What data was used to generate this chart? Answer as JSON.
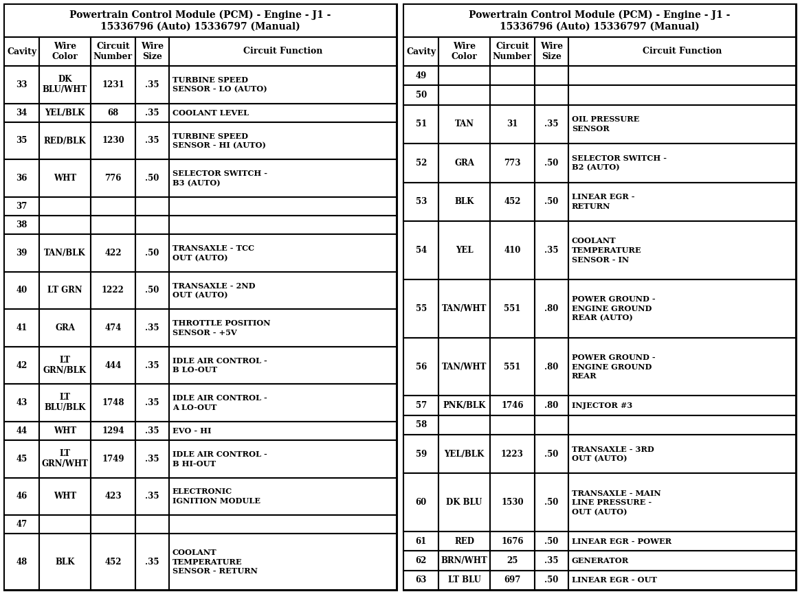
{
  "title": "Powertrain Control Module (PCM) - Engine - J1 -\n15336796 (Auto) 15336797 (Manual)",
  "col_headers": [
    "Cavity",
    "Wire\nColor",
    "Circuit\nNumber",
    "Wire\nSize",
    "Circuit Function"
  ],
  "left_table": [
    [
      "33",
      "DK\nBLU/WHT",
      "1231",
      ".35",
      "TURBINE SPEED\nSENSOR - LO (AUTO)"
    ],
    [
      "34",
      "YEL/BLK",
      "68",
      ".35",
      "COOLANT LEVEL"
    ],
    [
      "35",
      "RED/BLK",
      "1230",
      ".35",
      "TURBINE SPEED\nSENSOR - HI (AUTO)"
    ],
    [
      "36",
      "WHT",
      "776",
      ".50",
      "SELECTOR SWITCH -\nB3 (AUTO)"
    ],
    [
      "37",
      "",
      "",
      "",
      ""
    ],
    [
      "38",
      "",
      "",
      "",
      ""
    ],
    [
      "39",
      "TAN/BLK",
      "422",
      ".50",
      "TRANSAXLE - TCC\nOUT (AUTO)"
    ],
    [
      "40",
      "LT GRN",
      "1222",
      ".50",
      "TRANSAXLE - 2ND\nOUT (AUTO)"
    ],
    [
      "41",
      "GRA",
      "474",
      ".35",
      "THROTTLE POSITION\nSENSOR - +5V"
    ],
    [
      "42",
      "LT\nGRN/BLK",
      "444",
      ".35",
      "IDLE AIR CONTROL -\nB LO-OUT"
    ],
    [
      "43",
      "LT\nBLU/BLK",
      "1748",
      ".35",
      "IDLE AIR CONTROL -\nA LO-OUT"
    ],
    [
      "44",
      "WHT",
      "1294",
      ".35",
      "EVO - HI"
    ],
    [
      "45",
      "LT\nGRN/WHT",
      "1749",
      ".35",
      "IDLE AIR CONTROL -\nB HI-OUT"
    ],
    [
      "46",
      "WHT",
      "423",
      ".35",
      "ELECTRONIC\nIGNITION MODULE"
    ],
    [
      "47",
      "",
      "",
      "",
      ""
    ],
    [
      "48",
      "BLK",
      "452",
      ".35",
      "COOLANT\nTEMPERATURE\nSENSOR - RETURN"
    ]
  ],
  "right_table": [
    [
      "49",
      "",
      "",
      "",
      ""
    ],
    [
      "50",
      "",
      "",
      "",
      ""
    ],
    [
      "51",
      "TAN",
      "31",
      ".35",
      "OIL PRESSURE\nSENSOR"
    ],
    [
      "52",
      "GRA",
      "773",
      ".50",
      "SELECTOR SWITCH -\nB2 (AUTO)"
    ],
    [
      "53",
      "BLK",
      "452",
      ".50",
      "LINEAR EGR -\nRETURN"
    ],
    [
      "54",
      "YEL",
      "410",
      ".35",
      "COOLANT\nTEMPERATURE\nSENSOR - IN"
    ],
    [
      "55",
      "TAN/WHT",
      "551",
      ".80",
      "POWER GROUND -\nENGINE GROUND\nREAR (AUTO)"
    ],
    [
      "56",
      "TAN/WHT",
      "551",
      ".80",
      "POWER GROUND -\nENGINE GROUND\nREAR"
    ],
    [
      "57",
      "PNK/BLK",
      "1746",
      ".80",
      "INJECTOR #3"
    ],
    [
      "58",
      "",
      "",
      "",
      ""
    ],
    [
      "59",
      "YEL/BLK",
      "1223",
      ".50",
      "TRANSAXLE - 3RD\nOUT (AUTO)"
    ],
    [
      "60",
      "DK BLU",
      "1530",
      ".50",
      "TRANSAXLE - MAIN\nLINE PRESSURE -\nOUT (AUTO)"
    ],
    [
      "61",
      "RED",
      "1676",
      ".50",
      "LINEAR EGR - POWER"
    ],
    [
      "62",
      "BRN/WHT",
      "25",
      ".35",
      "GENERATOR"
    ],
    [
      "63",
      "LT BLU",
      "697",
      ".50",
      "LINEAR EGR - OUT"
    ]
  ],
  "left_row_units": [
    2,
    1,
    2,
    2,
    1,
    1,
    2,
    2,
    2,
    2,
    2,
    1,
    2,
    2,
    1,
    3
  ],
  "right_row_units": [
    1,
    1,
    2,
    2,
    2,
    3,
    3,
    3,
    1,
    1,
    2,
    3,
    1,
    1,
    1
  ],
  "bg_color": "#ffffff",
  "text_color": "#000000",
  "border_color": "#000000",
  "title_fontsize": 10.0,
  "header_fontsize": 9.0,
  "cell_fontsize": 8.5,
  "func_fontsize": 8.2
}
